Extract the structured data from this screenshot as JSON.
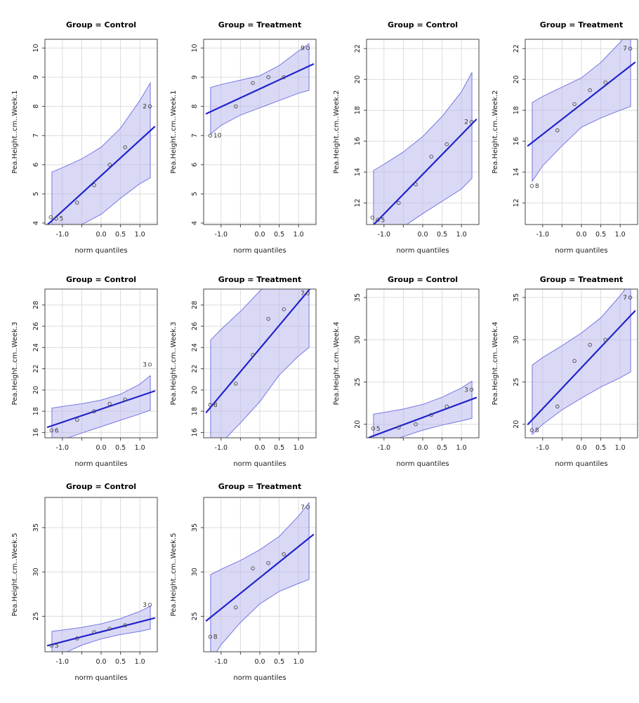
{
  "figure": {
    "background": "#ffffff",
    "xlabel": "norm quantiles",
    "xlim": [
      -1.45,
      1.45
    ],
    "x_ticks": [
      -1.0,
      -0.5,
      0.0,
      0.5,
      1.0
    ],
    "x_tick_labels": [
      "-1.0",
      "",
      "0.0",
      "0.5",
      "1.0"
    ],
    "grid_on": true,
    "legend": "none",
    "colors": {
      "envelope_fill": "#b9b9ee",
      "envelope_fill_opacity": 0.55,
      "envelope_stroke": "#7676e4",
      "fit_line": "#2222cc",
      "grid": "#dcdcdc",
      "box": "#454545",
      "point_stroke": "#4a4a4a",
      "text": "#1a1a1a"
    }
  },
  "chart_data": [
    {
      "type": "scatter",
      "row": 0,
      "col": 0,
      "week": 1,
      "group": "Control",
      "title": "Group = Control",
      "ylabel": "Pea.Height..cm..Week.1",
      "xlabel": "norm quantiles",
      "ylim": [
        3.95,
        10.3
      ],
      "y_ticks": [
        4,
        5,
        6,
        7,
        8,
        9,
        10
      ],
      "points": [
        {
          "x": -1.3,
          "y": 4.2
        },
        {
          "x": -1.16,
          "y": 4.15,
          "label": "5",
          "label_side": "right"
        },
        {
          "x": -0.62,
          "y": 4.7
        },
        {
          "x": -0.18,
          "y": 5.3
        },
        {
          "x": 0.22,
          "y": 6.0
        },
        {
          "x": 0.62,
          "y": 6.6
        },
        {
          "x": 1.26,
          "y": 8.0,
          "label": "2",
          "label_side": "left"
        }
      ],
      "fit_line": {
        "x1": -1.38,
        "y1": 3.95,
        "x2": 1.38,
        "y2": 7.3
      },
      "envelope": {
        "x": [
          -1.27,
          -1.0,
          -0.5,
          0.0,
          0.5,
          1.0,
          1.27
        ],
        "upper": [
          5.75,
          5.9,
          6.2,
          6.6,
          7.25,
          8.2,
          8.8
        ],
        "lower": [
          3.2,
          3.55,
          3.95,
          4.3,
          4.85,
          5.35,
          5.55
        ]
      }
    },
    {
      "type": "scatter",
      "row": 0,
      "col": 1,
      "week": 1,
      "group": "Treatment",
      "title": "Group = Treatment",
      "ylabel": "Pea.Height..cm..Week.1",
      "xlabel": "norm quantiles",
      "ylim": [
        3.95,
        10.3
      ],
      "y_ticks": [
        4,
        5,
        6,
        7,
        8,
        9,
        10
      ],
      "points": [
        {
          "x": -1.28,
          "y": 7.0,
          "label": "10",
          "label_side": "right"
        },
        {
          "x": -0.62,
          "y": 8.0
        },
        {
          "x": -0.18,
          "y": 8.8
        },
        {
          "x": 0.22,
          "y": 9.0
        },
        {
          "x": 0.62,
          "y": 9.0
        },
        {
          "x": 1.24,
          "y": 10.0,
          "label": "9",
          "label_side": "left"
        }
      ],
      "fit_line": {
        "x1": -1.38,
        "y1": 7.75,
        "x2": 1.38,
        "y2": 9.45
      },
      "envelope": {
        "x": [
          -1.27,
          -1.0,
          -0.5,
          0.0,
          0.5,
          1.0,
          1.27
        ],
        "upper": [
          8.65,
          8.75,
          8.9,
          9.05,
          9.4,
          9.9,
          10.15
        ],
        "lower": [
          7.05,
          7.35,
          7.7,
          7.95,
          8.2,
          8.45,
          8.55
        ]
      }
    },
    {
      "type": "scatter",
      "row": 0,
      "col": 2,
      "week": 2,
      "group": "Control",
      "title": "Group = Control",
      "ylabel": "Pea.Height..cm..Week.2",
      "xlabel": "norm quantiles",
      "ylim": [
        10.6,
        22.6
      ],
      "y_ticks": [
        12,
        14,
        16,
        18,
        20,
        22
      ],
      "points": [
        {
          "x": -1.3,
          "y": 11.05
        },
        {
          "x": -1.16,
          "y": 10.9,
          "label": "5",
          "label_side": "right"
        },
        {
          "x": -0.62,
          "y": 12.0
        },
        {
          "x": -0.18,
          "y": 13.2
        },
        {
          "x": 0.22,
          "y": 15.0
        },
        {
          "x": 0.62,
          "y": 15.8
        },
        {
          "x": 1.26,
          "y": 17.25,
          "label": "2",
          "label_side": "left"
        }
      ],
      "fit_line": {
        "x1": -1.38,
        "y1": 10.3,
        "x2": 1.38,
        "y2": 17.4
      },
      "envelope": {
        "x": [
          -1.27,
          -1.0,
          -0.5,
          0.0,
          0.5,
          1.0,
          1.27
        ],
        "upper": [
          14.1,
          14.5,
          15.3,
          16.3,
          17.6,
          19.2,
          20.45
        ],
        "lower": [
          8.9,
          9.6,
          10.45,
          11.3,
          12.1,
          12.9,
          13.6
        ]
      }
    },
    {
      "type": "scatter",
      "row": 0,
      "col": 3,
      "week": 2,
      "group": "Treatment",
      "title": "Group = Treatment",
      "ylabel": "Pea.Height..cm..Week.2",
      "xlabel": "norm quantiles",
      "ylim": [
        10.6,
        22.6
      ],
      "y_ticks": [
        12,
        14,
        16,
        18,
        20,
        22
      ],
      "points": [
        {
          "x": -1.28,
          "y": 13.1,
          "label": "8",
          "label_side": "right"
        },
        {
          "x": -0.62,
          "y": 16.7
        },
        {
          "x": -0.18,
          "y": 18.4
        },
        {
          "x": 0.22,
          "y": 19.3
        },
        {
          "x": 0.62,
          "y": 19.8
        },
        {
          "x": 1.26,
          "y": 22.0,
          "label": "7",
          "label_side": "left"
        }
      ],
      "fit_line": {
        "x1": -1.38,
        "y1": 15.7,
        "x2": 1.38,
        "y2": 21.1
      },
      "envelope": {
        "x": [
          -1.27,
          -1.0,
          -0.5,
          0.0,
          0.5,
          1.0,
          1.27
        ],
        "upper": [
          18.5,
          18.9,
          19.5,
          20.1,
          21.1,
          22.4,
          23.3
        ],
        "lower": [
          13.4,
          14.4,
          15.7,
          16.9,
          17.5,
          18.0,
          18.25
        ]
      }
    },
    {
      "type": "scatter",
      "row": 1,
      "col": 0,
      "week": 3,
      "group": "Control",
      "title": "Group = Control",
      "ylabel": "Pea.Height..cm..Week.3",
      "xlabel": "norm quantiles",
      "ylim": [
        15.5,
        29.5
      ],
      "y_ticks": [
        16,
        18,
        20,
        22,
        24,
        26,
        28
      ],
      "points": [
        {
          "x": -1.28,
          "y": 16.2,
          "label": "6",
          "label_side": "right"
        },
        {
          "x": -0.62,
          "y": 17.2
        },
        {
          "x": -0.18,
          "y": 18.0
        },
        {
          "x": 0.22,
          "y": 18.7
        },
        {
          "x": 0.62,
          "y": 19.1
        },
        {
          "x": 1.26,
          "y": 22.4,
          "label": "3",
          "label_side": "left"
        }
      ],
      "fit_line": {
        "x1": -1.38,
        "y1": 16.5,
        "x2": 1.38,
        "y2": 19.9
      },
      "envelope": {
        "x": [
          -1.27,
          -1.0,
          -0.5,
          0.0,
          0.5,
          1.0,
          1.27
        ],
        "upper": [
          18.3,
          18.45,
          18.7,
          19.05,
          19.6,
          20.55,
          21.35
        ],
        "lower": [
          14.9,
          15.3,
          15.95,
          16.55,
          17.15,
          17.75,
          18.1
        ]
      }
    },
    {
      "type": "scatter",
      "row": 1,
      "col": 1,
      "week": 3,
      "group": "Treatment",
      "title": "Group = Treatment",
      "ylabel": "Pea.Height..cm..Week.3",
      "xlabel": "norm quantiles",
      "ylim": [
        15.5,
        29.5
      ],
      "y_ticks": [
        16,
        18,
        20,
        22,
        24,
        26,
        28
      ],
      "points": [
        {
          "x": -1.28,
          "y": 18.6,
          "label": "8",
          "label_side": "right"
        },
        {
          "x": -0.62,
          "y": 20.6
        },
        {
          "x": -0.18,
          "y": 23.3
        },
        {
          "x": 0.22,
          "y": 26.7
        },
        {
          "x": 0.62,
          "y": 27.6
        },
        {
          "x": 1.24,
          "y": 29.1,
          "label": "7",
          "label_side": "left"
        }
      ],
      "fit_line": {
        "x1": -1.38,
        "y1": 17.9,
        "x2": 1.38,
        "y2": 29.9
      },
      "envelope": {
        "x": [
          -1.27,
          -1.0,
          -0.5,
          0.0,
          0.5,
          1.0,
          1.27
        ],
        "upper": [
          24.7,
          25.7,
          27.4,
          29.3,
          31.2,
          32.8,
          33.6
        ],
        "lower": [
          13.6,
          15.0,
          16.9,
          18.9,
          21.4,
          23.2,
          24.0
        ]
      }
    },
    {
      "type": "scatter",
      "row": 1,
      "col": 2,
      "week": 4,
      "group": "Control",
      "title": "Group = Control",
      "ylabel": "Pea.Height..cm..Week.4",
      "xlabel": "norm quantiles",
      "ylim": [
        18.4,
        36.0
      ],
      "y_ticks": [
        20,
        25,
        30,
        35
      ],
      "points": [
        {
          "x": -1.28,
          "y": 19.5,
          "label": "5",
          "label_side": "right"
        },
        {
          "x": -0.62,
          "y": 19.6
        },
        {
          "x": -0.18,
          "y": 20.0
        },
        {
          "x": 0.22,
          "y": 21.1
        },
        {
          "x": 0.62,
          "y": 22.1
        },
        {
          "x": 1.26,
          "y": 24.1,
          "label": "3",
          "label_side": "left"
        }
      ],
      "fit_line": {
        "x1": -1.38,
        "y1": 18.45,
        "x2": 1.38,
        "y2": 23.15
      },
      "envelope": {
        "x": [
          -1.27,
          -1.0,
          -0.5,
          0.0,
          0.5,
          1.0,
          1.27
        ],
        "upper": [
          21.2,
          21.4,
          21.8,
          22.35,
          23.2,
          24.3,
          25.1
        ],
        "lower": [
          17.2,
          17.8,
          18.55,
          19.3,
          19.9,
          20.4,
          20.7
        ]
      }
    },
    {
      "type": "scatter",
      "row": 1,
      "col": 3,
      "week": 4,
      "group": "Treatment",
      "title": "Group = Treatment",
      "ylabel": "Pea.Height..cm..Week.4",
      "xlabel": "norm quantiles",
      "ylim": [
        18.4,
        36.0
      ],
      "y_ticks": [
        20,
        25,
        30,
        35
      ],
      "points": [
        {
          "x": -1.28,
          "y": 19.3,
          "label": "8",
          "label_side": "right"
        },
        {
          "x": -0.62,
          "y": 22.1
        },
        {
          "x": -0.18,
          "y": 27.5
        },
        {
          "x": 0.22,
          "y": 29.4
        },
        {
          "x": 0.62,
          "y": 30.0
        },
        {
          "x": 1.26,
          "y": 35.0,
          "label": "7",
          "label_side": "left"
        }
      ],
      "fit_line": {
        "x1": -1.38,
        "y1": 20.0,
        "x2": 1.38,
        "y2": 33.4
      },
      "envelope": {
        "x": [
          -1.27,
          -1.0,
          -0.5,
          0.0,
          0.5,
          1.0,
          1.27
        ],
        "upper": [
          27.0,
          27.9,
          29.3,
          30.8,
          32.6,
          35.2,
          36.9
        ],
        "lower": [
          18.8,
          20.0,
          21.7,
          23.1,
          24.4,
          25.5,
          26.2
        ]
      }
    },
    {
      "type": "scatter",
      "row": 2,
      "col": 0,
      "week": 5,
      "group": "Control",
      "title": "Group = Control",
      "ylabel": "Pea.Height..cm..Week.5",
      "xlabel": "norm quantiles",
      "ylim": [
        21.0,
        38.4
      ],
      "y_ticks": [
        25,
        30,
        35
      ],
      "points": [
        {
          "x": -1.28,
          "y": 21.7,
          "label": "5",
          "label_side": "right"
        },
        {
          "x": -0.62,
          "y": 22.5
        },
        {
          "x": -0.18,
          "y": 23.2
        },
        {
          "x": 0.22,
          "y": 23.6
        },
        {
          "x": 0.62,
          "y": 24.0
        },
        {
          "x": 1.26,
          "y": 26.3,
          "label": "3",
          "label_side": "left"
        }
      ],
      "fit_line": {
        "x1": -1.38,
        "y1": 21.7,
        "x2": 1.38,
        "y2": 24.8
      },
      "envelope": {
        "x": [
          -1.27,
          -1.0,
          -0.5,
          0.0,
          0.5,
          1.0,
          1.27
        ],
        "upper": [
          23.3,
          23.45,
          23.75,
          24.15,
          24.75,
          25.55,
          26.15
        ],
        "lower": [
          20.1,
          20.75,
          21.75,
          22.45,
          22.95,
          23.3,
          23.55
        ]
      }
    },
    {
      "type": "scatter",
      "row": 2,
      "col": 1,
      "week": 5,
      "group": "Treatment",
      "title": "Group = Treatment",
      "ylabel": "Pea.Height..cm..Week.5",
      "xlabel": "norm quantiles",
      "ylim": [
        21.0,
        38.4
      ],
      "y_ticks": [
        25,
        30,
        35
      ],
      "points": [
        {
          "x": -1.28,
          "y": 22.7,
          "label": "8",
          "label_side": "right"
        },
        {
          "x": -0.62,
          "y": 26.0
        },
        {
          "x": -0.18,
          "y": 30.4
        },
        {
          "x": 0.22,
          "y": 31.0
        },
        {
          "x": 0.62,
          "y": 32.0
        },
        {
          "x": 1.24,
          "y": 37.3,
          "label": "7",
          "label_side": "left"
        }
      ],
      "fit_line": {
        "x1": -1.38,
        "y1": 24.5,
        "x2": 1.38,
        "y2": 34.2
      },
      "envelope": {
        "x": [
          -1.27,
          -1.0,
          -0.5,
          0.0,
          0.5,
          1.0,
          1.27
        ],
        "upper": [
          29.7,
          30.3,
          31.3,
          32.5,
          34.0,
          36.3,
          37.8
        ],
        "lower": [
          19.9,
          21.8,
          24.3,
          26.4,
          27.8,
          28.7,
          29.15
        ]
      }
    }
  ]
}
